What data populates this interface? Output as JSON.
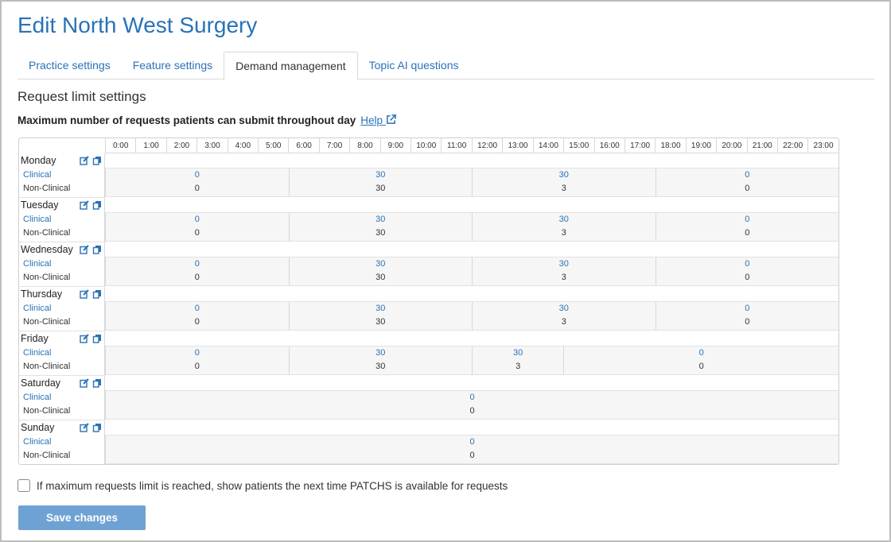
{
  "page": {
    "title": "Edit North West Surgery"
  },
  "tabs": [
    {
      "label": "Practice settings",
      "active": false
    },
    {
      "label": "Feature settings",
      "active": false
    },
    {
      "label": "Demand management",
      "active": true
    },
    {
      "label": "Topic AI questions",
      "active": false
    }
  ],
  "section": {
    "title": "Request limit settings",
    "subtitle": "Maximum number of requests patients can submit throughout day",
    "help_label": "Help"
  },
  "hours": [
    "0:00",
    "1:00",
    "2:00",
    "3:00",
    "4:00",
    "5:00",
    "6:00",
    "7:00",
    "8:00",
    "9:00",
    "10:00",
    "11:00",
    "12:00",
    "13:00",
    "14:00",
    "15:00",
    "16:00",
    "17:00",
    "18:00",
    "19:00",
    "20:00",
    "21:00",
    "22:00",
    "23:00"
  ],
  "row_labels": {
    "clinical": "Clinical",
    "non_clinical": "Non-Clinical"
  },
  "days": [
    {
      "name": "Monday",
      "segments": [
        {
          "start": 0,
          "end": 6,
          "clinical": "0",
          "non_clinical": "0"
        },
        {
          "start": 6,
          "end": 12,
          "clinical": "30",
          "non_clinical": "30"
        },
        {
          "start": 12,
          "end": 18,
          "clinical": "30",
          "non_clinical": "3"
        },
        {
          "start": 18,
          "end": 24,
          "clinical": "0",
          "non_clinical": "0"
        }
      ]
    },
    {
      "name": "Tuesday",
      "segments": [
        {
          "start": 0,
          "end": 6,
          "clinical": "0",
          "non_clinical": "0"
        },
        {
          "start": 6,
          "end": 12,
          "clinical": "30",
          "non_clinical": "30"
        },
        {
          "start": 12,
          "end": 18,
          "clinical": "30",
          "non_clinical": "3"
        },
        {
          "start": 18,
          "end": 24,
          "clinical": "0",
          "non_clinical": "0"
        }
      ]
    },
    {
      "name": "Wednesday",
      "segments": [
        {
          "start": 0,
          "end": 6,
          "clinical": "0",
          "non_clinical": "0"
        },
        {
          "start": 6,
          "end": 12,
          "clinical": "30",
          "non_clinical": "30"
        },
        {
          "start": 12,
          "end": 18,
          "clinical": "30",
          "non_clinical": "3"
        },
        {
          "start": 18,
          "end": 24,
          "clinical": "0",
          "non_clinical": "0"
        }
      ]
    },
    {
      "name": "Thursday",
      "segments": [
        {
          "start": 0,
          "end": 6,
          "clinical": "0",
          "non_clinical": "0"
        },
        {
          "start": 6,
          "end": 12,
          "clinical": "30",
          "non_clinical": "30"
        },
        {
          "start": 12,
          "end": 18,
          "clinical": "30",
          "non_clinical": "3"
        },
        {
          "start": 18,
          "end": 24,
          "clinical": "0",
          "non_clinical": "0"
        }
      ]
    },
    {
      "name": "Friday",
      "segments": [
        {
          "start": 0,
          "end": 6,
          "clinical": "0",
          "non_clinical": "0"
        },
        {
          "start": 6,
          "end": 12,
          "clinical": "30",
          "non_clinical": "30"
        },
        {
          "start": 12,
          "end": 15,
          "clinical": "30",
          "non_clinical": "3"
        },
        {
          "start": 15,
          "end": 24,
          "clinical": "0",
          "non_clinical": "0"
        }
      ]
    },
    {
      "name": "Saturday",
      "segments": [
        {
          "start": 0,
          "end": 24,
          "clinical": "0",
          "non_clinical": "0"
        }
      ]
    },
    {
      "name": "Sunday",
      "segments": [
        {
          "start": 0,
          "end": 24,
          "clinical": "0",
          "non_clinical": "0"
        }
      ]
    }
  ],
  "options": {
    "show_next_available_label": "If maximum requests limit is reached, show patients the next time PATCHS is available for requests",
    "show_next_available_checked": false
  },
  "actions": {
    "save_label": "Save changes"
  },
  "colors": {
    "accent": "#2a72b6",
    "button": "#6fa2d4"
  }
}
